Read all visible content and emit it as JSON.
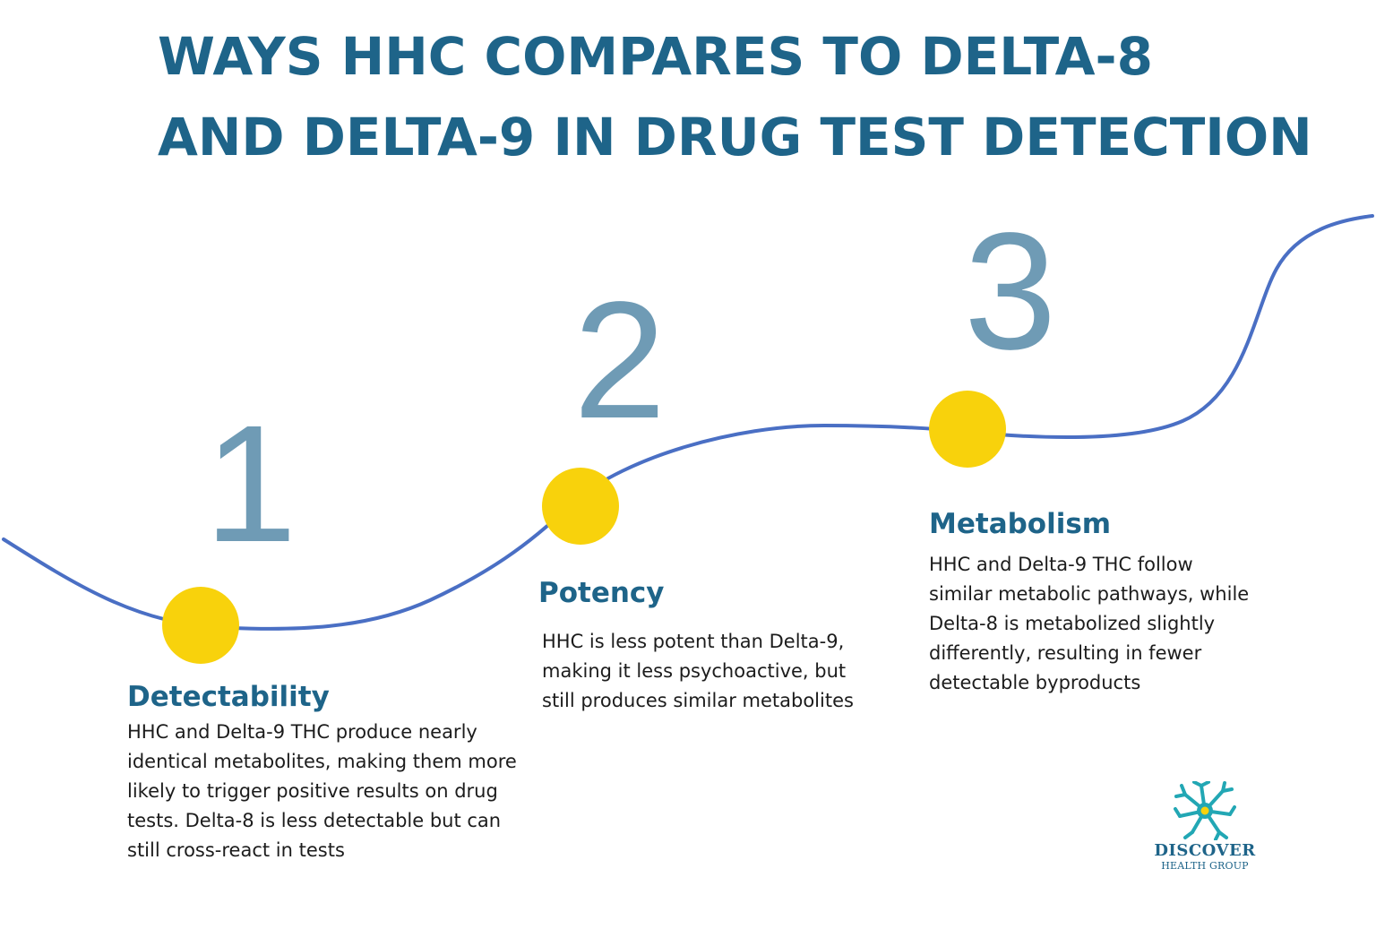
{
  "title": {
    "line1": "WAYS HHC COMPARES TO DELTA-8",
    "line2": "AND DELTA-9 IN DRUG TEST DETECTION"
  },
  "colors": {
    "title": "#1e6489",
    "number": "#6f9bb5",
    "curve": "#4a6fc4",
    "dot": "#f8d20c",
    "body_text": "#1c1c1c"
  },
  "steps": [
    {
      "number": "1",
      "title": "Detectability",
      "lines": [
        "HHC and Delta-9 THC produce nearly",
        "identical metabolites, making them more",
        "likely to trigger positive results on drug",
        "tests. Delta-8 is less detectable but can",
        "still cross-react in tests"
      ]
    },
    {
      "number": "2",
      "title": "Potency",
      "lines": [
        "HHC is less potent than Delta-9,",
        "making it less psychoactive, but",
        "still produces similar metabolites"
      ]
    },
    {
      "number": "3",
      "title": "Metabolism",
      "lines": [
        "HHC and Delta-9 THC follow",
        "similar metabolic pathways, while",
        "Delta-8 is metabolized slightly",
        "differently, resulting in fewer",
        "detectable byproducts"
      ]
    }
  ],
  "logo": {
    "icon": "neuron-icon",
    "line1": "DISCOVER",
    "line2": "HEALTH GROUP"
  }
}
